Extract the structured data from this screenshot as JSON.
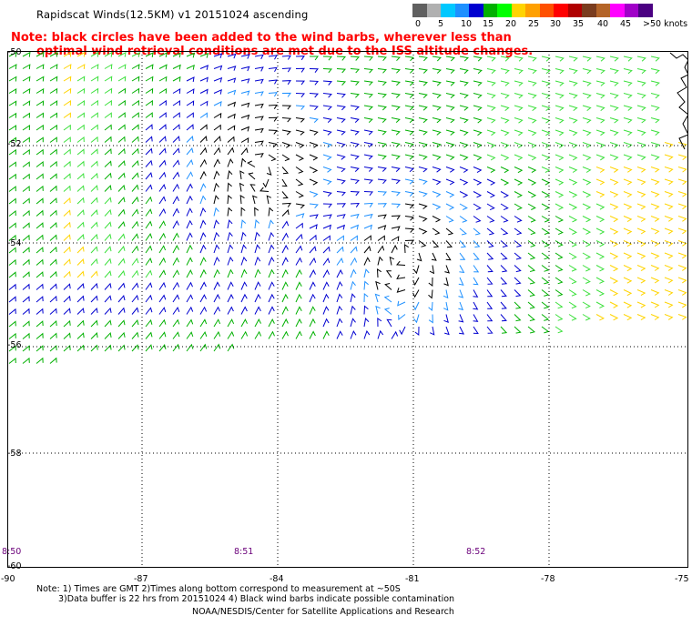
{
  "title": "Rapidscat Winds(12.5KM) v1 20151024 ascending",
  "colorbar": {
    "colors": [
      "#606060",
      "#b0b0b0",
      "#00c8ff",
      "#1e90ff",
      "#0000d0",
      "#00b000",
      "#00ff00",
      "#ffd400",
      "#ffa000",
      "#ff5000",
      "#ff0000",
      "#b00000",
      "#7a3c1e",
      "#b46428",
      "#ff00ff",
      "#a000c8",
      "#4b0082"
    ],
    "labels": [
      "0",
      "5",
      "10",
      "15",
      "20",
      "25",
      "30",
      "35",
      "40",
      "45",
      ">50 knots"
    ]
  },
  "notes": {
    "line1": "Note: black circles have been added to the wind barbs, wherever less than",
    "line2": "optimal wind retrieval conditions are met due to the ISS altitude changes."
  },
  "map": {
    "lat_labels": [
      "-50",
      "-52",
      "-54",
      "-56",
      "-58",
      "-60"
    ],
    "lon_labels": [
      "-90",
      "-87",
      "-84",
      "-81",
      "-78",
      "-75"
    ],
    "time_labels": [
      "8:50",
      "8:51",
      "8:52"
    ]
  },
  "footnotes": {
    "line1": "Note: 1) Times are GMT 2)Times along bottom correspond to measurement at ~50S",
    "line2": "3)Data buffer is 22 hrs from 20151024 4) Black wind barbs indicate possible contamination",
    "credit": "NOAA/NESDIS/Center for Satellite Applications and Research"
  }
}
